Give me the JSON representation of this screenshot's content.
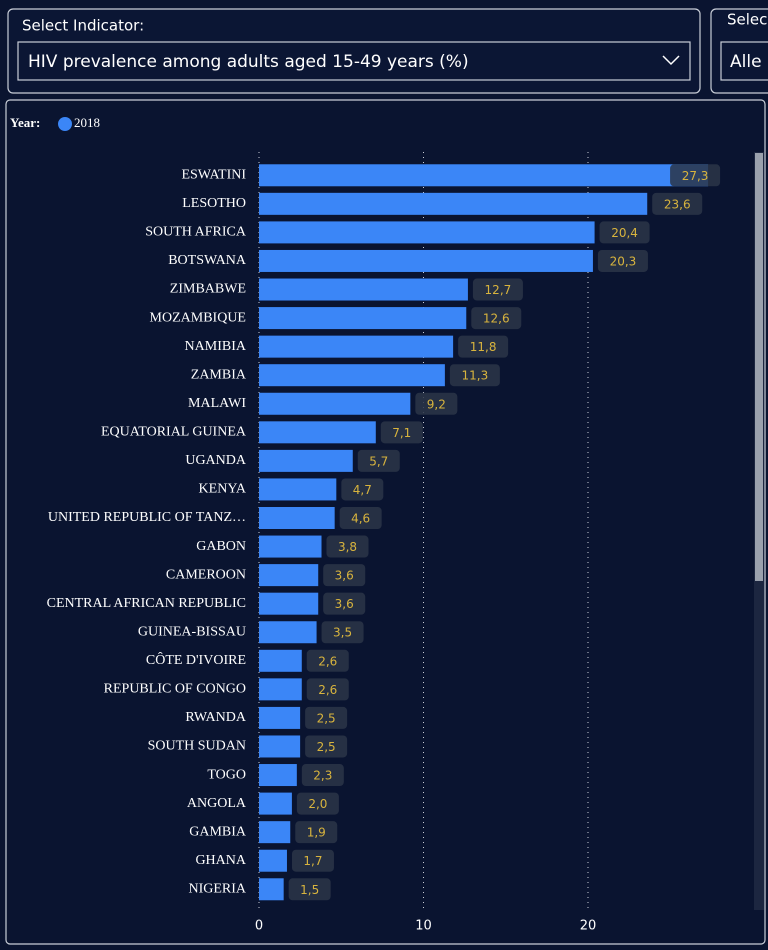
{
  "filters": {
    "indicator_label": "Select Indicator:",
    "indicator_value": "HIV prevalence among adults aged 15-49 years (%)",
    "second_label": "Selec",
    "second_value": "Alle"
  },
  "chart_data": {
    "type": "bar",
    "orientation": "horizontal",
    "legend_title": "Year:",
    "categories": [
      "ESWATINI",
      "LESOTHO",
      "SOUTH AFRICA",
      "BOTSWANA",
      "ZIMBABWE",
      "MOZAMBIQUE",
      "NAMIBIA",
      "ZAMBIA",
      "MALAWI",
      "EQUATORIAL GUINEA",
      "UGANDA",
      "KENYA",
      "UNITED REPUBLIC OF TANZ…",
      "GABON",
      "CAMEROON",
      "CENTRAL AFRICAN REPUBLIC",
      "GUINEA-BISSAU",
      "CÔTE D'IVOIRE",
      "REPUBLIC OF CONGO",
      "RWANDA",
      "SOUTH SUDAN",
      "TOGO",
      "ANGOLA",
      "GAMBIA",
      "GHANA",
      "NIGERIA"
    ],
    "series": [
      {
        "name": "2018",
        "color": "#3b86f7",
        "values": [
          27.3,
          23.6,
          20.4,
          20.3,
          12.7,
          12.6,
          11.8,
          11.3,
          9.2,
          7.1,
          5.7,
          4.7,
          4.6,
          3.8,
          3.6,
          3.6,
          3.5,
          2.6,
          2.6,
          2.5,
          2.5,
          2.3,
          2.0,
          1.9,
          1.7,
          1.5
        ],
        "value_labels": [
          "27,3",
          "23,6",
          "20,4",
          "20,3",
          "12,7",
          "12,6",
          "11,8",
          "11,3",
          "9,2",
          "7,1",
          "5,7",
          "4,7",
          "4,6",
          "3,8",
          "3,6",
          "3,6",
          "3,5",
          "2,6",
          "2,6",
          "2,5",
          "2,5",
          "2,3",
          "2,0",
          "1,9",
          "1,7",
          "1,5"
        ]
      }
    ],
    "xlim": [
      0,
      30
    ],
    "xticks": [
      0,
      10,
      20
    ],
    "grid": true
  }
}
